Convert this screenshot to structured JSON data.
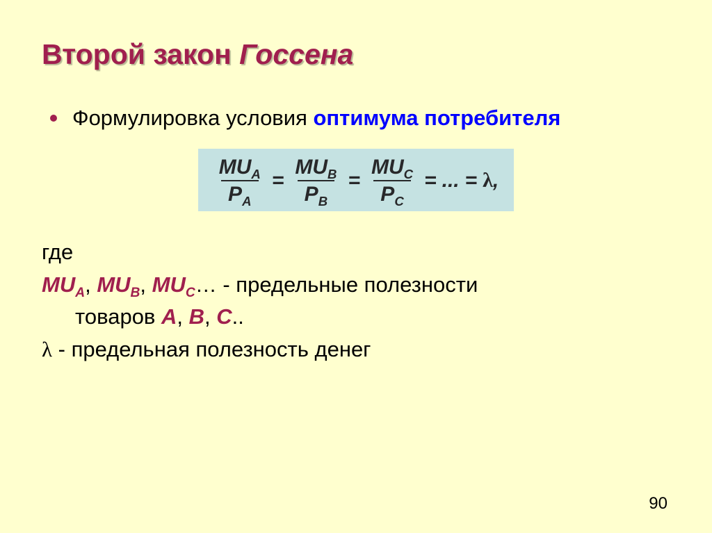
{
  "colors": {
    "slide_bg": "#ffffcf",
    "title_color": "#a01f4e",
    "title_shadow": "rgba(0,0,0,0.28)",
    "text_color": "#000000",
    "highlight_blue": "#0000ff",
    "formula_bg": "#c5e2e2",
    "formula_text": "#28282a",
    "accent_red": "#a01f4e"
  },
  "typography": {
    "title_fontsize_pt": 31,
    "body_fontsize_pt": 23,
    "formula_fontsize_pt": 22,
    "page_num_fontsize_pt": 18
  },
  "title": {
    "part1": "Второй закон ",
    "part2_italic": "Госсена"
  },
  "bullet": {
    "lead": "Формулировка условия ",
    "highlight": "оптимума потребителя"
  },
  "formula": {
    "terms": [
      {
        "num_base": "MU",
        "num_sub": "A",
        "den_base": "P",
        "den_sub": "A"
      },
      {
        "num_base": "MU",
        "num_sub": "B",
        "den_base": "P",
        "den_sub": "B"
      },
      {
        "num_base": "MU",
        "num_sub": "C",
        "den_base": "P",
        "den_sub": "C"
      }
    ],
    "eq": "=",
    "tail_dots": "...",
    "tail_symbol": "λ",
    "tail_punct": ","
  },
  "defs": {
    "where": "где",
    "mu_list": {
      "mu": "MU",
      "subs": [
        "A",
        "B",
        "C"
      ],
      "sep": ", ",
      "ellipsis": "…",
      "dash_text": " - предельные полезности"
    },
    "goods_line": {
      "prefix": "товаров ",
      "goods": [
        "A",
        "B",
        "C"
      ],
      "sep": ", ",
      "suffix": ".."
    },
    "lambda_line": {
      "symbol": "λ",
      "text": " - предельная полезность денег"
    }
  },
  "page_number": "90"
}
